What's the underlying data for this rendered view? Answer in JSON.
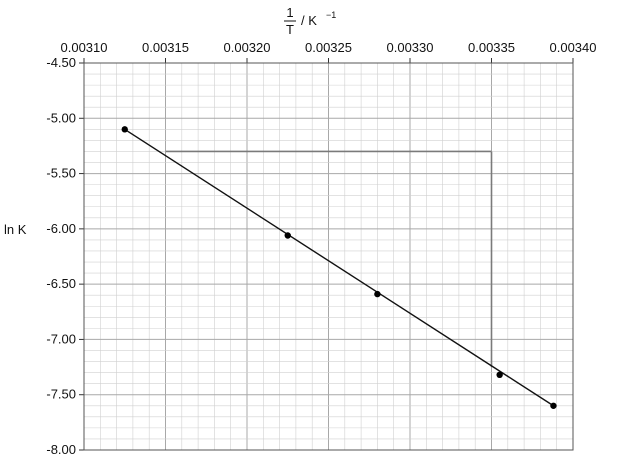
{
  "chart_data": {
    "type": "scatter",
    "title": "",
    "x_axis": {
      "label_numerator": "1",
      "label_denominator": "T",
      "label_unit": "/ K",
      "label_unit_exponent": "−1",
      "position": "top",
      "range": [
        0.0031,
        0.0034
      ],
      "ticks": [
        0.0031,
        0.00315,
        0.0032,
        0.00325,
        0.0033,
        0.00335,
        0.0034
      ],
      "tick_labels": [
        "0.00310",
        "0.00315",
        "0.00320",
        "0.00325",
        "0.00330",
        "0.00335",
        "0.00340"
      ]
    },
    "y_axis": {
      "label": "ln K",
      "range": [
        -8.0,
        -4.5
      ],
      "ticks": [
        -4.5,
        -5.0,
        -5.5,
        -6.0,
        -6.5,
        -7.0,
        -7.5,
        -8.0
      ],
      "tick_labels": [
        "-4.50",
        "-5.00",
        "-5.50",
        "-6.00",
        "-6.50",
        "-7.00",
        "-7.50",
        "-8.00"
      ]
    },
    "grid": true,
    "series": [
      {
        "points": [
          {
            "x": 0.003125,
            "y": -5.1
          },
          {
            "x": 0.003225,
            "y": -6.06
          },
          {
            "x": 0.00328,
            "y": -6.59
          },
          {
            "x": 0.003355,
            "y": -7.32
          },
          {
            "x": 0.003388,
            "y": -7.6
          }
        ]
      }
    ],
    "best_fit_line": {
      "from": {
        "x": 0.003125,
        "y": -5.1
      },
      "to": {
        "x": 0.003388,
        "y": -7.6
      }
    },
    "gradient_triangle": {
      "x_left": 0.00315,
      "x_right": 0.00335,
      "y_top": -5.3,
      "y_bottom": -7.25
    },
    "colors": {
      "grid_minor": "#d0d0d0",
      "grid_major": "#a8a8a8",
      "line": "#111111",
      "triangle": "#7a7a7a"
    }
  }
}
